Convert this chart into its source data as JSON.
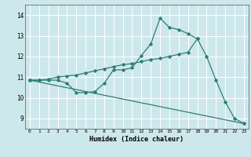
{
  "xlabel": "Humidex (Indice chaleur)",
  "bg_color": "#cde8ec",
  "grid_color": "#ffffff",
  "line_color": "#2e7d74",
  "xlim": [
    -0.5,
    23.5
  ],
  "ylim": [
    8.5,
    14.5
  ],
  "xticks": [
    0,
    1,
    2,
    3,
    4,
    5,
    6,
    7,
    8,
    9,
    10,
    11,
    12,
    13,
    14,
    15,
    16,
    17,
    18,
    19,
    20,
    21,
    22,
    23
  ],
  "yticks": [
    9,
    10,
    11,
    12,
    13,
    14
  ],
  "series1_x": [
    0,
    1,
    2,
    3,
    4,
    5,
    6,
    7,
    8,
    9,
    10,
    11,
    12,
    13,
    14,
    15,
    16,
    17,
    18,
    19,
    20,
    21,
    22,
    23
  ],
  "series1_y": [
    10.85,
    10.85,
    10.85,
    10.85,
    10.7,
    10.25,
    10.25,
    10.3,
    10.7,
    11.35,
    11.35,
    11.45,
    12.05,
    12.6,
    13.85,
    13.4,
    13.3,
    13.1,
    12.85,
    12.0,
    10.85,
    9.8,
    9.0,
    8.75
  ],
  "series2_x": [
    0,
    1,
    2,
    3,
    4,
    5,
    6,
    7,
    8,
    9,
    10,
    11,
    12,
    13,
    14,
    15,
    16,
    17,
    18
  ],
  "series2_y": [
    10.85,
    10.85,
    10.9,
    11.0,
    11.05,
    11.1,
    11.2,
    11.3,
    11.4,
    11.5,
    11.6,
    11.65,
    11.75,
    11.85,
    11.9,
    12.0,
    12.1,
    12.2,
    12.85
  ],
  "series3_x": [
    0,
    23
  ],
  "series3_y": [
    10.85,
    8.75
  ]
}
